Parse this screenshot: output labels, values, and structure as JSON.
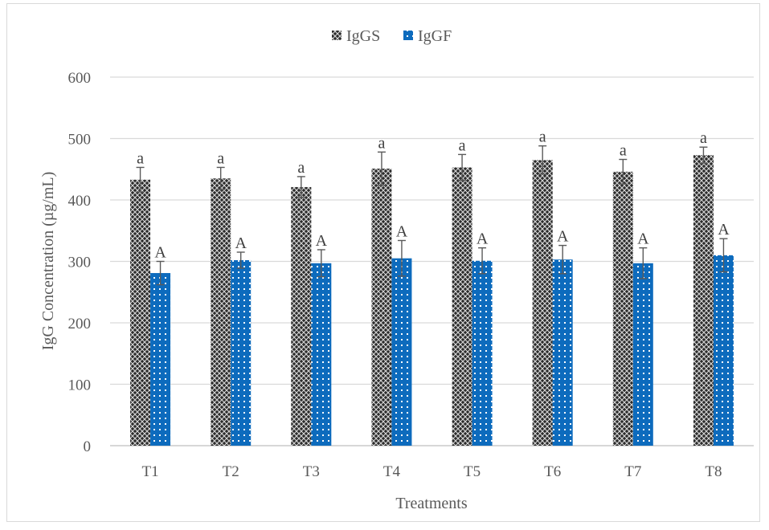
{
  "chart_data": {
    "type": "bar",
    "xlabel": "Treatments",
    "ylabel": "IgG Concentration  (µg/mL)",
    "ylim": [
      0,
      600
    ],
    "yticks": [
      0,
      100,
      200,
      300,
      400,
      500,
      600
    ],
    "categories": [
      "T1",
      "T2",
      "T3",
      "T4",
      "T5",
      "T6",
      "T7",
      "T8"
    ],
    "grid": true,
    "legend_position": "top",
    "series": [
      {
        "name": "IgGS",
        "color": "#3a3a3a",
        "pattern": "crosshatch",
        "values": [
          433,
          435,
          421,
          451,
          453,
          465,
          446,
          473
        ],
        "errors": [
          20,
          18,
          17,
          27,
          21,
          23,
          20,
          13
        ],
        "labels": [
          "a",
          "a",
          "a",
          "a",
          "a",
          "a",
          "a",
          "a"
        ]
      },
      {
        "name": "IgGF",
        "color": "#0d6bbd",
        "pattern": "dots",
        "values": [
          281,
          302,
          297,
          305,
          301,
          303,
          297,
          310
        ],
        "errors": [
          19,
          13,
          22,
          29,
          21,
          23,
          25,
          27
        ],
        "labels": [
          "A",
          "A",
          "A",
          "A",
          "A",
          "A",
          "A",
          "A"
        ]
      }
    ]
  }
}
